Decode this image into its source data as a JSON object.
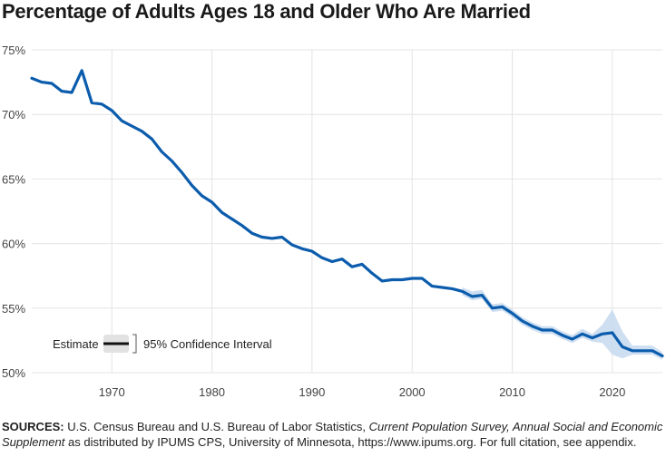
{
  "title": "Percentage of Adults Ages 18 and Older Who Are Married",
  "source": {
    "label": "SOURCES:",
    "text_1": " U.S. Census Bureau and U.S. Bureau of Labor Statistics, ",
    "italic": "Current Population Survey, Annual Social and Economic Supplement",
    "text_2": " as distributed by IPUMS CPS, University of Minnesota, https://www.ipums.org. For full citation, see appendix."
  },
  "legend": {
    "estimate": "Estimate",
    "ci": "95% Confidence Interval"
  },
  "colors": {
    "line": "#0b5cad",
    "band": "#c5d9ee",
    "grid": "#e4e4e4",
    "legend_band": "#e2e2e2"
  },
  "chart_data": {
    "type": "line",
    "title": "Percentage of Adults Ages 18 and Older Who Are Married",
    "xlabel": "",
    "ylabel": "",
    "xlim": [
      1962,
      2025
    ],
    "ylim": [
      50,
      75
    ],
    "x_ticks": [
      1970,
      1980,
      1990,
      2000,
      2010,
      2020
    ],
    "x_tick_labels": [
      "1970",
      "1980",
      "1990",
      "2000",
      "2010",
      "2020"
    ],
    "y_ticks": [
      50,
      55,
      60,
      65,
      70,
      75
    ],
    "y_tick_labels": [
      "50%",
      "55%",
      "60%",
      "65%",
      "70%",
      "75%"
    ],
    "grid": true,
    "legend_position": "bottom-left",
    "series": [
      {
        "name": "Estimate",
        "x": [
          1962,
          1963,
          1964,
          1965,
          1966,
          1967,
          1968,
          1969,
          1970,
          1971,
          1972,
          1973,
          1974,
          1975,
          1976,
          1977,
          1978,
          1979,
          1980,
          1981,
          1982,
          1983,
          1984,
          1985,
          1986,
          1987,
          1988,
          1989,
          1990,
          1991,
          1992,
          1993,
          1994,
          1995,
          1996,
          1997,
          1998,
          1999,
          2000,
          2001,
          2002,
          2003,
          2004,
          2005,
          2006,
          2007,
          2008,
          2009,
          2010,
          2011,
          2012,
          2013,
          2014,
          2015,
          2016,
          2017,
          2018,
          2019,
          2020,
          2021,
          2022,
          2023,
          2024,
          2025
        ],
        "values": [
          72.8,
          72.5,
          72.4,
          71.8,
          71.7,
          73.4,
          70.9,
          70.8,
          70.3,
          69.5,
          69.1,
          68.7,
          68.1,
          67.1,
          66.4,
          65.5,
          64.5,
          63.7,
          63.2,
          62.4,
          61.9,
          61.4,
          60.8,
          60.5,
          60.4,
          60.5,
          59.9,
          59.6,
          59.4,
          58.9,
          58.6,
          58.8,
          58.2,
          58.4,
          57.7,
          57.1,
          57.2,
          57.2,
          57.3,
          57.3,
          56.7,
          56.6,
          56.5,
          56.3,
          55.9,
          56.0,
          55.0,
          55.1,
          54.6,
          54.0,
          53.6,
          53.3,
          53.3,
          52.9,
          52.6,
          53.0,
          52.7,
          53.0,
          53.1,
          52.0,
          51.7,
          51.7,
          51.7,
          51.3
        ]
      }
    ],
    "confidence_interval": {
      "name": "95% Confidence Interval",
      "x": [
        2005,
        2006,
        2007,
        2008,
        2009,
        2010,
        2011,
        2012,
        2013,
        2014,
        2015,
        2016,
        2017,
        2018,
        2019,
        2020,
        2021,
        2022,
        2023,
        2024,
        2025
      ],
      "lower": [
        56.0,
        55.6,
        55.7,
        54.7,
        54.8,
        54.3,
        53.7,
        53.3,
        53.0,
        53.0,
        52.6,
        52.3,
        52.7,
        52.4,
        52.3,
        51.4,
        51.1,
        51.4,
        51.4,
        51.4,
        51.0
      ],
      "upper": [
        56.6,
        56.3,
        56.4,
        55.3,
        55.4,
        54.9,
        54.3,
        53.9,
        53.6,
        53.6,
        53.2,
        52.9,
        53.4,
        53.0,
        53.7,
        54.9,
        53.2,
        52.1,
        52.1,
        52.1,
        51.6
      ]
    }
  }
}
